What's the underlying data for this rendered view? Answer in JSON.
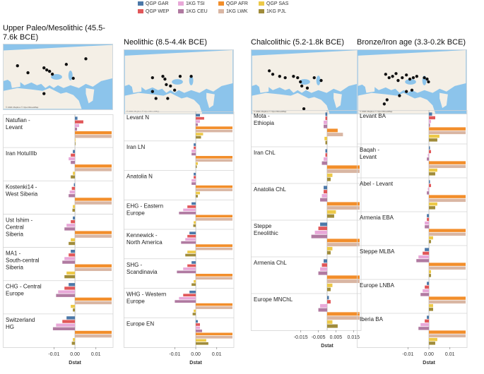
{
  "legend": [
    {
      "label": "QGP GAR",
      "color": "#4c78a8"
    },
    {
      "label": "QGP WEP",
      "color": "#e15759"
    },
    {
      "label": "1KG TSI",
      "color": "#e8a8d8"
    },
    {
      "label": "1KG CEU",
      "color": "#b07aa1"
    },
    {
      "label": "QGP AFR",
      "color": "#f28e2b"
    },
    {
      "label": "1KG LWK",
      "color": "#d9b6a3"
    },
    {
      "label": "QGP SAS",
      "color": "#edc948"
    },
    {
      "label": "1KG PJL",
      "color": "#a08c3a"
    }
  ],
  "map_credit": "© 2021 Mapbox © OpenStreetMap",
  "chart_data": [
    {
      "type": "bar",
      "title": "Upper Paleo/Mesolithic (45.5-7.6k BCE)",
      "xlabel": "Dstat",
      "xlim": [
        -0.0135,
        0.0175
      ],
      "xticks": [
        -0.01,
        0.0,
        0.01
      ],
      "xtick_labels": [
        "-0.01",
        "0.00",
        "0.01"
      ],
      "series": [
        "QGP GAR",
        "QGP WEP",
        "1KG TSI",
        "1KG CEU",
        "QGP AFR",
        "1KG LWK",
        "QGP SAS",
        "1KG PJL"
      ],
      "groups": [
        {
          "name": "Natufian - Levant",
          "values": [
            0.0012,
            0.004,
            0.002,
            0.001,
            0.0175,
            0.0175,
            0.0,
            0.0
          ]
        },
        {
          "name": "Iran HotuIIIb",
          "values": [
            -0.001,
            -0.002,
            -0.003,
            -0.002,
            0.0175,
            0.0175,
            -0.001,
            -0.002
          ]
        },
        {
          "name": "Kostenki14 - West Siberia",
          "values": [
            -0.0005,
            -0.0015,
            -0.0025,
            -0.003,
            0.0175,
            0.0175,
            -0.001,
            -0.0012
          ]
        },
        {
          "name": "Ust Ishim - Central Siberia",
          "values": [
            -0.001,
            -0.002,
            -0.004,
            -0.005,
            0.0175,
            0.0175,
            -0.002,
            -0.003
          ]
        },
        {
          "name": "MA1 - South-central Siberia",
          "values": [
            -0.002,
            -0.003,
            -0.005,
            -0.006,
            0.0175,
            0.0175,
            -0.004,
            -0.005
          ]
        },
        {
          "name": "CHG - Central Europe",
          "values": [
            -0.003,
            -0.005,
            -0.008,
            -0.009,
            0.0175,
            0.0175,
            -0.002,
            -0.001
          ]
        },
        {
          "name": "Switzerland HG",
          "values": [
            -0.004,
            -0.006,
            -0.009,
            -0.0105,
            0.0175,
            0.0175,
            -0.001,
            -0.0015
          ]
        }
      ]
    },
    {
      "type": "bar",
      "title": "Neolithic (8.5-4.4k BCE)",
      "xlabel": "Dstat",
      "xlim": [
        -0.0135,
        0.0175
      ],
      "xticks": [
        -0.01,
        0.0,
        0.01
      ],
      "xtick_labels": [
        "-0.01",
        "0.00",
        "0.01"
      ],
      "series": [
        "QGP GAR",
        "QGP WEP",
        "1KG TSI",
        "1KG CEU",
        "QGP AFR",
        "1KG LWK",
        "QGP SAS",
        "1KG PJL"
      ],
      "groups": [
        {
          "name": "Levant N",
          "values": [
            0.002,
            0.004,
            0.002,
            0.001,
            0.0175,
            0.0175,
            0.0035,
            0.0025
          ]
        },
        {
          "name": "Iran LN",
          "values": [
            -0.001,
            -0.001,
            -0.002,
            -0.002,
            0.0175,
            0.0175,
            0.001,
            0.0005
          ]
        },
        {
          "name": "Anatolia N",
          "values": [
            -0.001,
            -0.001,
            -0.002,
            -0.002,
            0.0175,
            0.0175,
            0.002,
            0.001
          ]
        },
        {
          "name": "EHG - Eastern Europe",
          "values": [
            -0.002,
            -0.004,
            -0.006,
            -0.008,
            0.0175,
            0.0175,
            -0.001,
            -0.0012
          ]
        },
        {
          "name": "Kennewick - North America",
          "values": [
            -0.003,
            -0.004,
            -0.005,
            -0.007,
            0.0175,
            0.0175,
            -0.004,
            -0.005
          ]
        },
        {
          "name": "SHG - Scandinavia",
          "values": [
            -0.002,
            -0.004,
            -0.006,
            -0.009,
            0.0175,
            0.0175,
            -0.001,
            -0.002
          ]
        },
        {
          "name": "WHG - Western Europe",
          "values": [
            -0.003,
            -0.006,
            -0.008,
            -0.01,
            0.0175,
            0.0175,
            -0.001,
            -0.0015
          ]
        },
        {
          "name": "Europe EN",
          "values": [
            0.001,
            0.002,
            0.002,
            0.003,
            0.0175,
            0.0175,
            0.005,
            0.006
          ]
        }
      ]
    },
    {
      "type": "bar",
      "title": "Chalcolithic (5.2-1.8k BCE)",
      "xlabel": "Dstat",
      "xlim": [
        -0.0185,
        0.0185
      ],
      "xticks": [
        -0.015,
        -0.005,
        0.005,
        0.015
      ],
      "xtick_labels": [
        "-0.015",
        "-0.005",
        "0.005",
        "0.015"
      ],
      "series": [
        "QGP GAR",
        "QGP WEP",
        "1KG TSI",
        "1KG CEU",
        "QGP AFR",
        "1KG LWK",
        "QGP SAS",
        "1KG PJL"
      ],
      "groups": [
        {
          "name": "Mota - Ethiopia",
          "values": [
            -0.001,
            -0.001,
            -0.002,
            -0.002,
            0.006,
            0.009,
            -0.0015,
            -0.001
          ]
        },
        {
          "name": "Iran ChL",
          "values": [
            -0.001,
            -0.001,
            -0.002,
            -0.003,
            0.0185,
            0.0185,
            0.003,
            0.002
          ]
        },
        {
          "name": "Anatolia ChL",
          "values": [
            -0.002,
            -0.002,
            -0.003,
            -0.004,
            0.0185,
            0.0185,
            0.005,
            0.004
          ]
        },
        {
          "name": "Steppe Eneolithic",
          "values": [
            -0.004,
            -0.005,
            -0.007,
            -0.009,
            0.0185,
            0.0185,
            0.003,
            0.002
          ]
        },
        {
          "name": "Armenia ChL",
          "values": [
            -0.002,
            -0.003,
            -0.004,
            -0.005,
            0.0185,
            0.0185,
            0.003,
            0.002
          ]
        },
        {
          "name": "Europe MNChL",
          "values": [
            0.001,
            0.002,
            -0.004,
            -0.005,
            0.0185,
            0.0185,
            0.003,
            0.006
          ]
        }
      ]
    },
    {
      "type": "bar",
      "title": "Bronze/Iron age (3.3-0.2k BCE)",
      "xlabel": "Dstat",
      "xlim": [
        -0.0135,
        0.0175
      ],
      "xticks": [
        -0.01,
        0.0,
        0.01
      ],
      "xtick_labels": [
        "-0.01",
        "0.00",
        "0.01"
      ],
      "series": [
        "QGP GAR",
        "QGP WEP",
        "1KG TSI",
        "1KG CEU",
        "QGP AFR",
        "1KG LWK",
        "QGP SAS",
        "1KG PJL"
      ],
      "groups": [
        {
          "name": "Levant BA",
          "values": [
            0.0015,
            0.003,
            0.001,
            0.0005,
            0.0175,
            0.0175,
            0.005,
            0.004
          ]
        },
        {
          "name": "Baqah - Levant",
          "values": [
            0.0005,
            0.001,
            -0.0005,
            -0.001,
            0.0175,
            0.0175,
            0.004,
            0.003
          ]
        },
        {
          "name": "Abel - Levant",
          "values": [
            0.0005,
            0.001,
            -0.0005,
            -0.001,
            0.0175,
            0.0175,
            0.004,
            0.003
          ]
        },
        {
          "name": "Armenia EBA",
          "values": [
            -0.001,
            -0.001,
            -0.002,
            -0.002,
            0.0175,
            0.0175,
            0.002,
            0.001
          ]
        },
        {
          "name": "Steppe MLBA",
          "values": [
            -0.002,
            -0.003,
            -0.005,
            -0.006,
            0.0175,
            0.0175,
            0.001,
            0.001
          ]
        },
        {
          "name": "Europe LNBA",
          "values": [
            -0.001,
            -0.002,
            -0.003,
            -0.004,
            0.0175,
            0.0175,
            0.002,
            0.002
          ]
        },
        {
          "name": "Iberia BA",
          "values": [
            -0.001,
            -0.002,
            -0.004,
            -0.005,
            0.0175,
            0.0175,
            0.004,
            0.003
          ]
        }
      ]
    }
  ]
}
